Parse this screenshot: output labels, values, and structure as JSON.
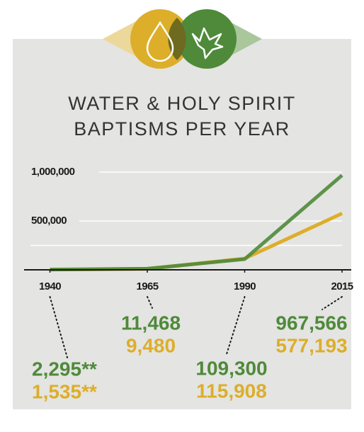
{
  "chart_data": {
    "type": "line",
    "title": [
      "WATER & HOLY SPIRIT",
      "BAPTISMS PER YEAR"
    ],
    "x": [
      1940,
      1965,
      1990,
      2015
    ],
    "xlim": [
      1935,
      2015
    ],
    "xticks": [
      1940,
      1965,
      1990,
      2015
    ],
    "ylim": [
      0,
      1000000
    ],
    "yticks": [
      {
        "value": 500000,
        "label": "500,000"
      },
      {
        "value": 1000000,
        "label": "1,000,000"
      }
    ],
    "minor_yticks": [
      250000
    ],
    "grid": true,
    "series": [
      {
        "color": "#dcae2a",
        "values": [
          1535,
          9480,
          115908,
          577193
        ],
        "value_labels": [
          "1,535**",
          "9,480",
          "115,908",
          "577,193"
        ]
      },
      {
        "color": "#4e8a3a",
        "values": [
          2295,
          11468,
          109300,
          967566
        ],
        "value_labels": [
          "2,295**",
          "11,468",
          "109,300",
          "967,566"
        ]
      }
    ]
  }
}
